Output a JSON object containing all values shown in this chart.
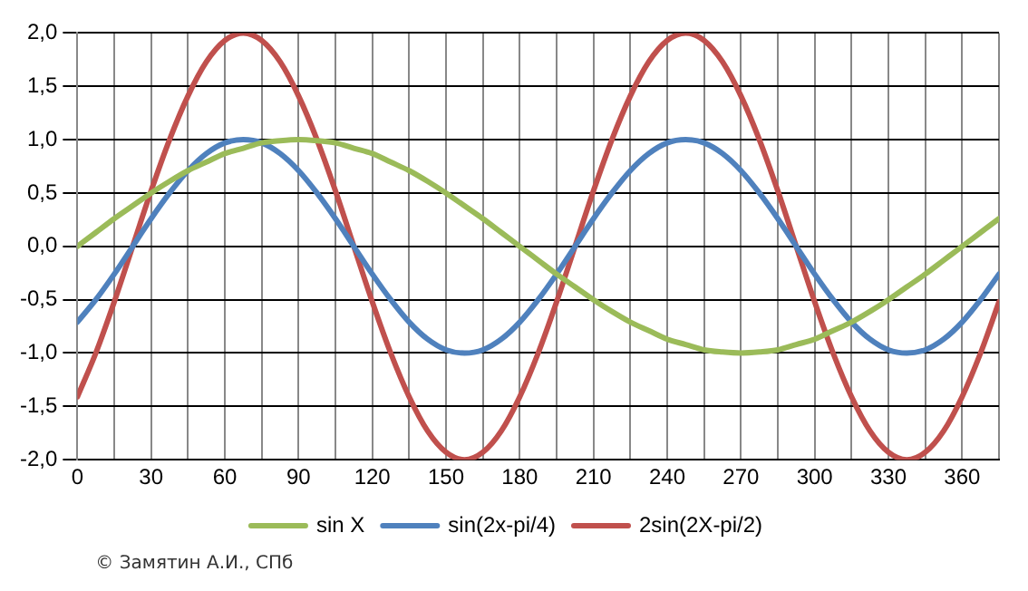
{
  "chart_data": {
    "type": "line",
    "x": [
      0,
      7.5,
      15,
      22.5,
      30,
      37.5,
      45,
      52.5,
      60,
      67.5,
      75,
      82.5,
      90,
      97.5,
      105,
      112.5,
      120,
      127.5,
      135,
      142.5,
      150,
      157.5,
      165,
      172.5,
      180,
      187.5,
      195,
      202.5,
      210,
      217.5,
      225,
      232.5,
      240,
      247.5,
      255,
      262.5,
      270,
      277.5,
      285,
      292.5,
      300,
      307.5,
      315,
      322.5,
      330,
      337.5,
      345,
      352.5,
      360,
      367.5,
      375
    ],
    "series": [
      {
        "name": "sin X",
        "color": "#9bbb59",
        "values": [
          0,
          0.13,
          0.26,
          0.38,
          0.5,
          0.61,
          0.71,
          0.79,
          0.87,
          0.92,
          0.97,
          0.99,
          1,
          0.99,
          0.97,
          0.92,
          0.87,
          0.79,
          0.71,
          0.61,
          0.5,
          0.38,
          0.26,
          0.13,
          0,
          -0.13,
          -0.26,
          -0.38,
          -0.5,
          -0.61,
          -0.71,
          -0.79,
          -0.87,
          -0.92,
          -0.97,
          -0.99,
          -1,
          -0.99,
          -0.97,
          -0.92,
          -0.87,
          -0.79,
          -0.71,
          -0.61,
          -0.5,
          -0.38,
          -0.26,
          -0.13,
          0,
          0.13,
          0.26
        ]
      },
      {
        "name": "sin(2x-pi/4)",
        "color": "#4f81bd",
        "values": [
          -0.71,
          -0.5,
          -0.26,
          0,
          0.26,
          0.5,
          0.71,
          0.87,
          0.97,
          1,
          0.97,
          0.87,
          0.71,
          0.5,
          0.26,
          0,
          -0.26,
          -0.5,
          -0.71,
          -0.87,
          -0.97,
          -1,
          -0.97,
          -0.87,
          -0.71,
          -0.5,
          -0.26,
          0,
          0.26,
          0.5,
          0.71,
          0.87,
          0.97,
          1,
          0.97,
          0.87,
          0.71,
          0.5,
          0.26,
          0,
          -0.26,
          -0.5,
          -0.71,
          -0.87,
          -0.97,
          -1,
          -0.97,
          -0.87,
          -0.71,
          -0.5,
          -0.26
        ]
      },
      {
        "name": "2sin(2X-pi/2)",
        "color": "#c0504d",
        "values": [
          -1.41,
          -1,
          -0.52,
          0,
          0.52,
          1,
          1.41,
          1.73,
          1.93,
          2,
          1.93,
          1.73,
          1.41,
          1,
          0.52,
          0,
          -0.52,
          -1,
          -1.41,
          -1.73,
          -1.93,
          -2,
          -1.93,
          -1.73,
          -1.41,
          -1,
          -0.52,
          0,
          0.52,
          1,
          1.41,
          1.73,
          1.93,
          2,
          1.93,
          1.73,
          1.41,
          1,
          0.52,
          0,
          -0.52,
          -1,
          -1.41,
          -1.73,
          -1.93,
          -2,
          -1.93,
          -1.73,
          -1.41,
          -1,
          -0.52
        ]
      }
    ],
    "xlim": [
      0,
      375
    ],
    "xticks": [
      0,
      {
        "value": 15,
        "label": null
      },
      30,
      {
        "value": 45,
        "label": null
      },
      60,
      {
        "value": 75,
        "label": null
      },
      90,
      {
        "value": 105,
        "label": null
      },
      120,
      {
        "value": 135,
        "label": null
      },
      150,
      {
        "value": 165,
        "label": null
      },
      180,
      {
        "value": 195,
        "label": null
      },
      210,
      {
        "value": 225,
        "label": null
      },
      240,
      {
        "value": 255,
        "label": null
      },
      270,
      {
        "value": 285,
        "label": null
      },
      300,
      {
        "value": 315,
        "label": null
      },
      330,
      {
        "value": 345,
        "label": null
      },
      360,
      {
        "value": 375,
        "label": null
      }
    ],
    "ylim": [
      -2,
      2
    ],
    "yticks": [
      {
        "value": -2,
        "label": "-2,0"
      },
      {
        "value": -1.5,
        "label": "-1,5"
      },
      {
        "value": -1,
        "label": "-1,0"
      },
      {
        "value": -0.5,
        "label": "-0,5"
      },
      {
        "value": 0,
        "label": "0,0"
      },
      {
        "value": 0.5,
        "label": "0,5"
      },
      {
        "value": 1,
        "label": "1,0"
      },
      {
        "value": 1.5,
        "label": "1,5"
      },
      {
        "value": 2,
        "label": "2,0"
      }
    ],
    "grid": true,
    "legend": "bottom",
    "marker": "none",
    "line_style": "solid",
    "annotations": [
      "© Замятин А.И., СПб"
    ]
  }
}
